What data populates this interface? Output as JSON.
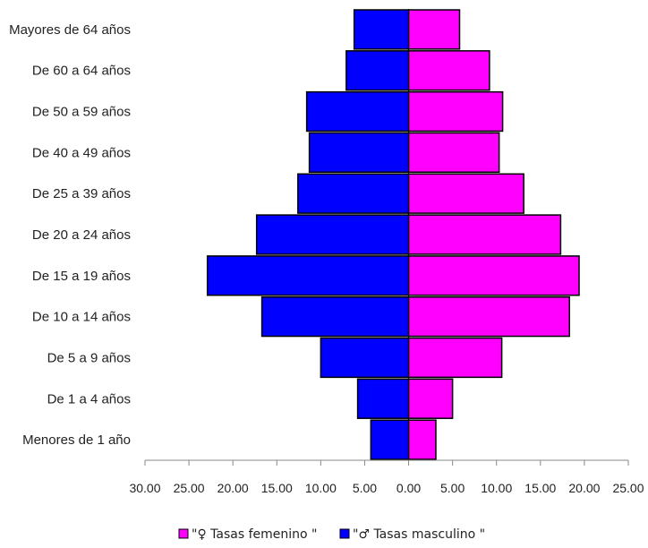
{
  "chart_data": {
    "type": "bar",
    "orientation": "horizontal",
    "layout": "population-pyramid",
    "categories": [
      "Menores de 1 año",
      "De 1 a 4 años",
      "De 5 a 9 años",
      "De 10 a 14 años",
      "De 15 a 19 años",
      "De 20 a 24 años",
      "De 25 a 39 años",
      "De 40 a 49 años",
      "De 50 a 59 años",
      "De 60 a 64 años",
      "Mayores de 64 años"
    ],
    "series": [
      {
        "name": "\"♀ Tasas femenino \"",
        "side": "right",
        "color": "#ff00ff",
        "values": [
          3.1,
          5.0,
          10.6,
          18.3,
          19.4,
          17.3,
          13.1,
          10.3,
          10.7,
          9.2,
          5.8
        ]
      },
      {
        "name": "\"♂ Tasas masculino \"",
        "side": "left",
        "color": "#0000ff",
        "values": [
          4.3,
          5.8,
          10.0,
          16.7,
          22.9,
          17.3,
          12.6,
          11.3,
          11.6,
          7.1,
          6.2
        ]
      }
    ],
    "xlim": [
      -30,
      25
    ],
    "xticks": [
      -30,
      -25,
      -20,
      -15,
      -10,
      -5,
      0,
      5,
      10,
      15,
      20,
      25
    ],
    "xtick_labels": [
      "30.00",
      "25.00",
      "20.00",
      "15.00",
      "10.00",
      "5.00",
      "0.00",
      "5.00",
      "10.00",
      "15.00",
      "20.00",
      "25.00"
    ],
    "title": "",
    "xlabel": "",
    "ylabel": "",
    "grid": false,
    "legend_position": "bottom"
  }
}
